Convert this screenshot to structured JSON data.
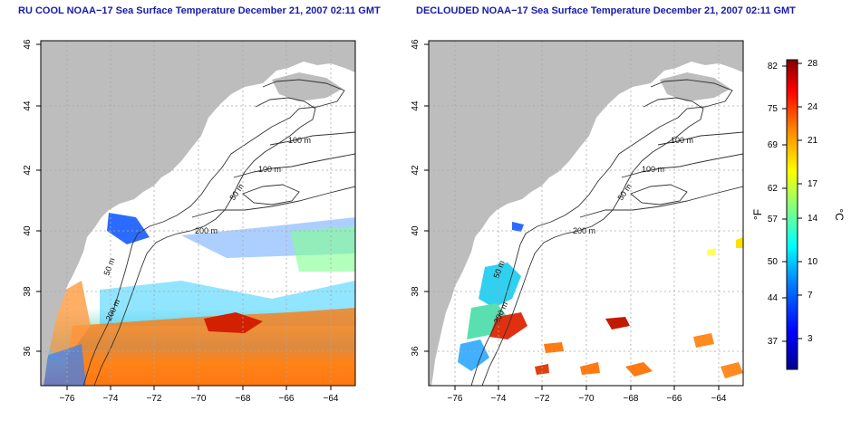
{
  "panels": [
    {
      "title": "RU COOL NOAA−17 Sea Surface Temperature December 21, 2007 02:11 GMT",
      "x_ticks": [
        "−76",
        "−74",
        "−72",
        "−70",
        "−68",
        "−66",
        "−64"
      ],
      "y_ticks": [
        "36",
        "38",
        "40",
        "42",
        "44",
        "46"
      ],
      "contour_labels": [
        "100 m",
        "100 m",
        "50 m",
        "200 m",
        "50 m",
        "200 m"
      ]
    },
    {
      "title": "DECLOUDED NOAA−17 Sea Surface Temperature December 21, 2007 02:11 GMT",
      "x_ticks": [
        "−76",
        "−74",
        "−72",
        "−70",
        "−68",
        "−66",
        "−64"
      ],
      "y_ticks": [
        "36",
        "38",
        "40",
        "42",
        "44",
        "46"
      ],
      "contour_labels": [
        "100 m",
        "100 m",
        "50 m",
        "200 m",
        "50 m",
        "200 m"
      ]
    }
  ],
  "colorbar": {
    "fahrenheit_ticks": [
      "82",
      "75",
      "69",
      "62",
      "57",
      "50",
      "44",
      "37"
    ],
    "celsius_ticks": [
      "28",
      "24",
      "21",
      "17",
      "14",
      "10",
      "7",
      "3"
    ],
    "fahrenheit_label": "°F",
    "celsius_label": "°C",
    "range_c": [
      0,
      28
    ],
    "colors": [
      "#00008f",
      "#0000ff",
      "#0080ff",
      "#00ffff",
      "#80ff80",
      "#ffff00",
      "#ff8000",
      "#ff0000",
      "#800000"
    ]
  },
  "colors": {
    "land": "#bdbdbd",
    "title": "#1a1aa8",
    "grid": "#a8a8a8",
    "contour": "#333333"
  }
}
